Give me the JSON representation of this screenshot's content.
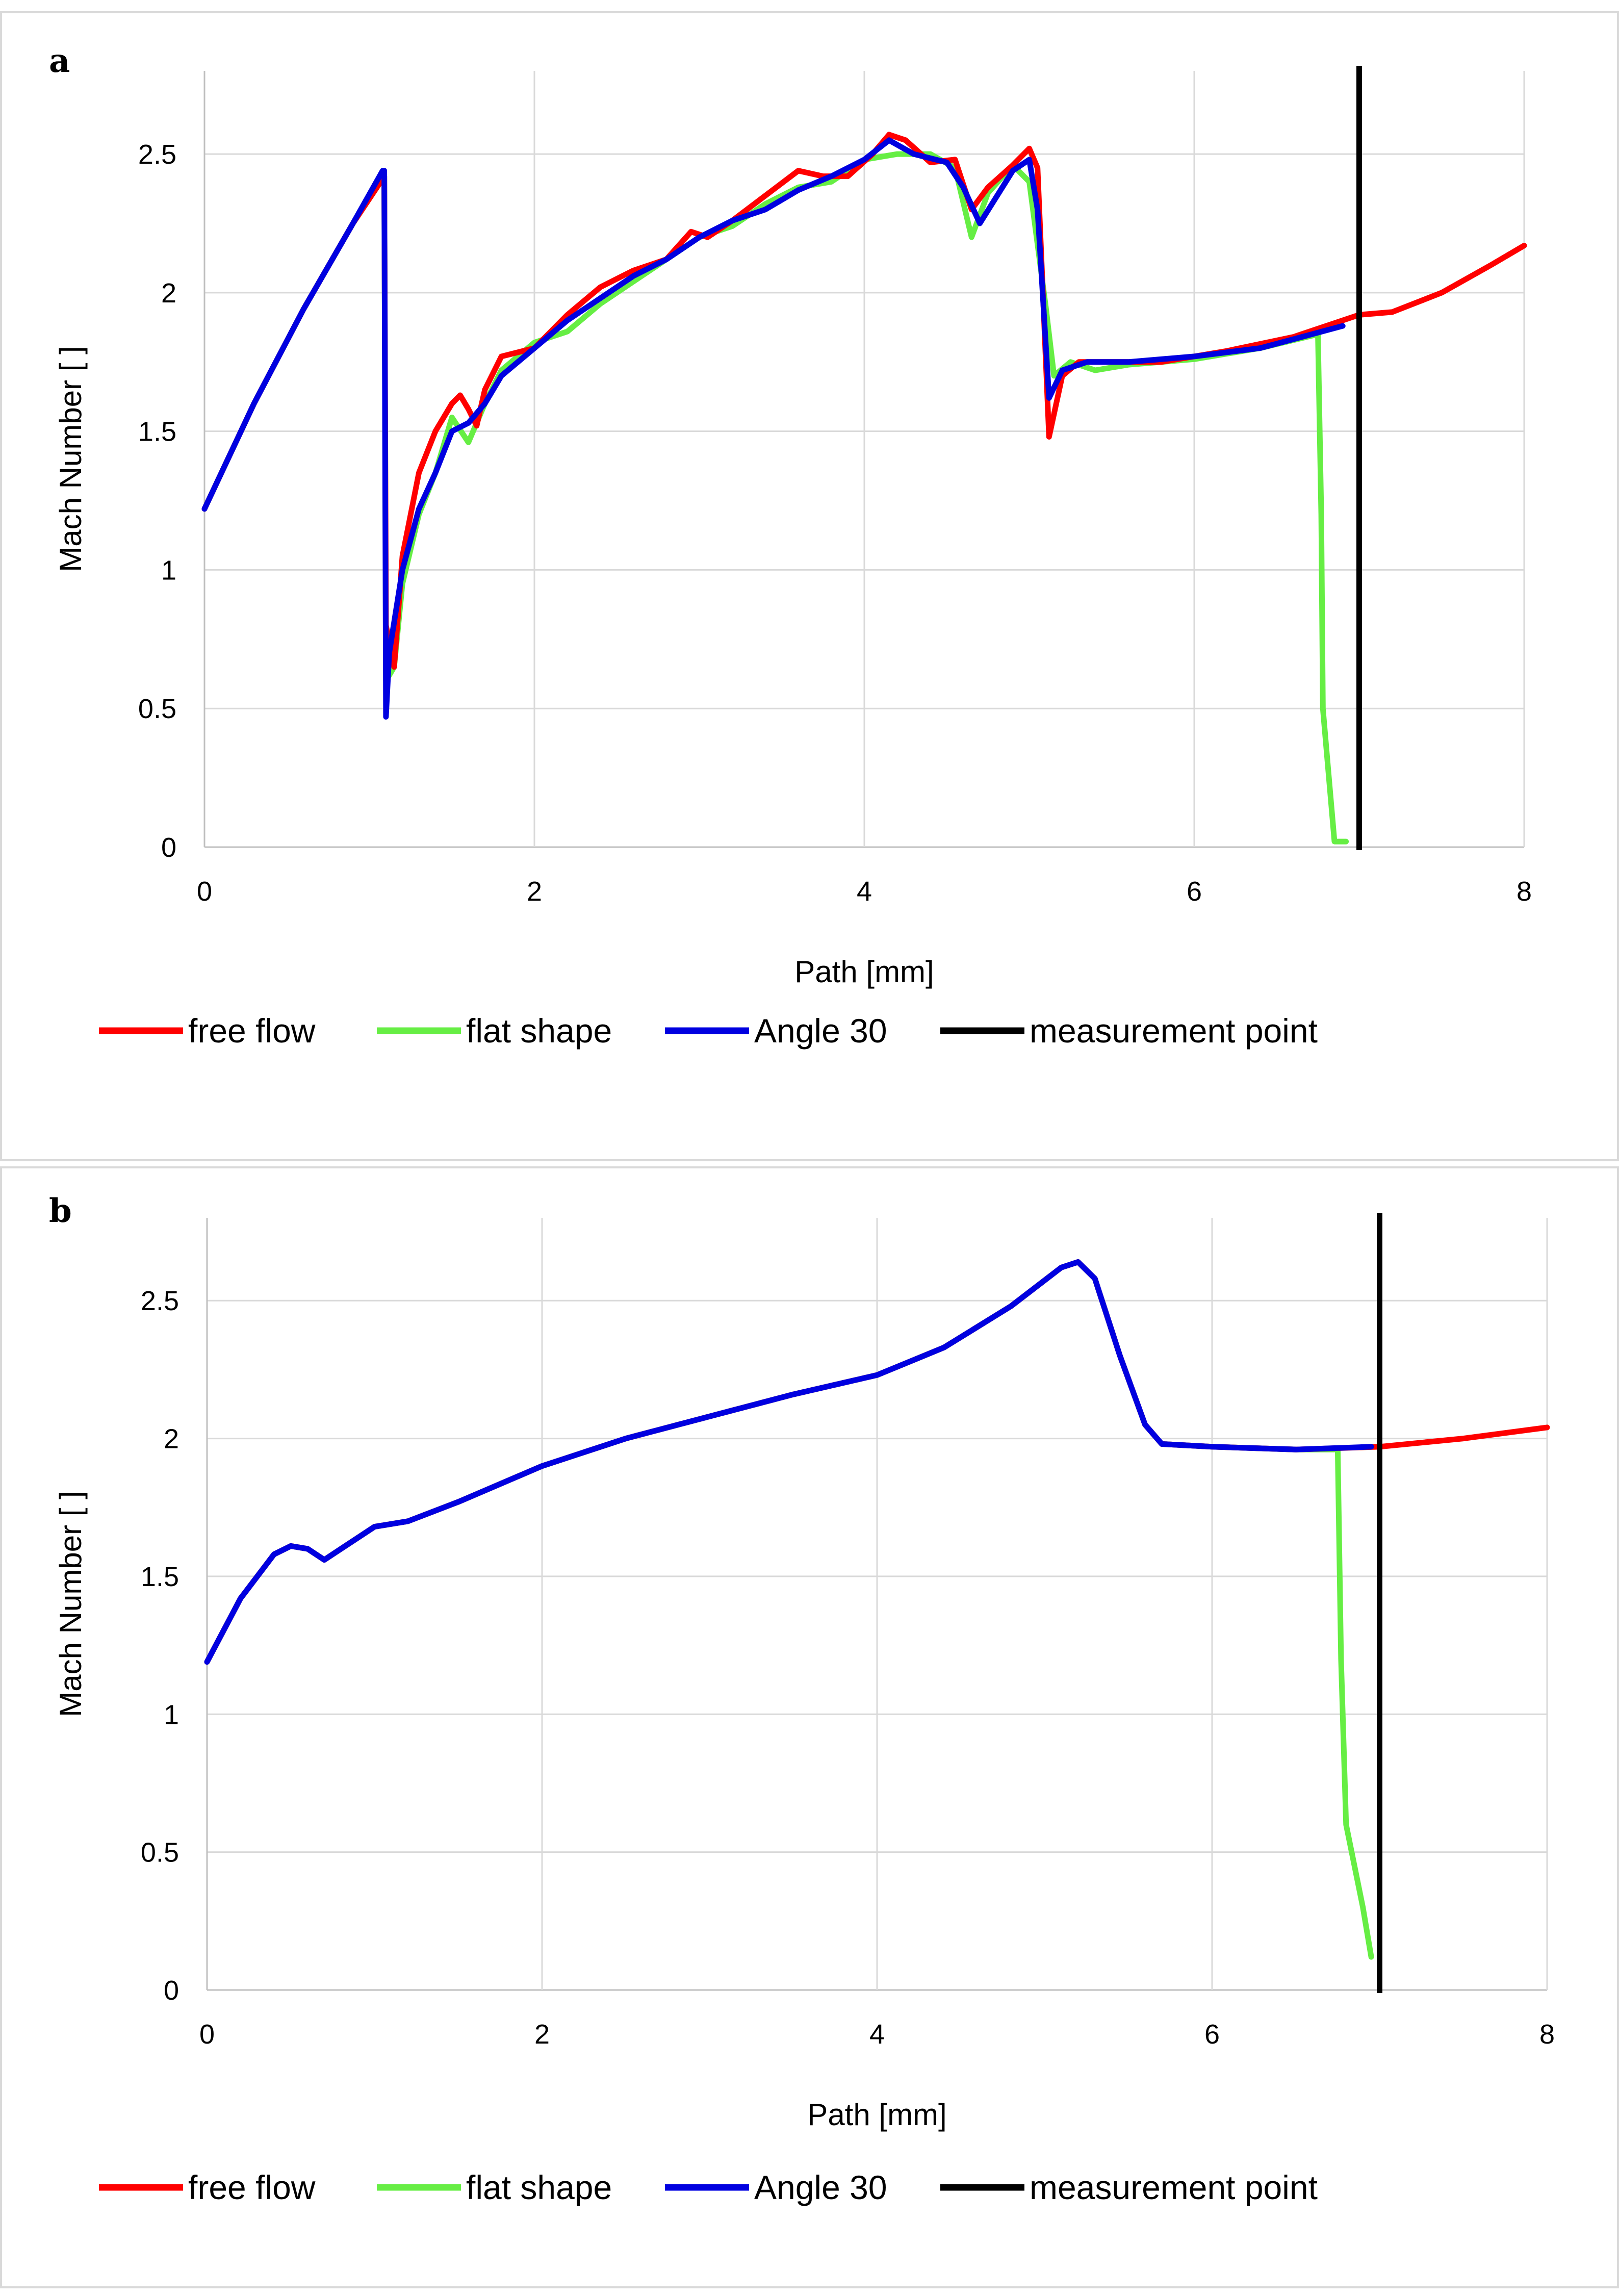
{
  "chart_data": [
    {
      "type": "line",
      "panel_label": "a",
      "xlabel": "Path [mm]",
      "ylabel": "Mach Number [ ]",
      "xlim": [
        0,
        8
      ],
      "ylim": [
        0,
        2.8
      ],
      "xticks": [
        "0",
        "2",
        "4",
        "6",
        "8"
      ],
      "yticks": [
        "0",
        "0.5",
        "1",
        "1.5",
        "2",
        "2.5"
      ],
      "grid": true,
      "legend_position": "bottom",
      "legend": [
        {
          "name": "free flow",
          "color": "#ff0000"
        },
        {
          "name": "flat shape",
          "color": "#66ee44"
        },
        {
          "name": "Angle 30",
          "color": "#0000e0"
        },
        {
          "name": "measurement point",
          "color": "#000000"
        }
      ],
      "measurement_x": 7.0,
      "series": [
        {
          "name": "free flow",
          "color": "#ff0000",
          "x": [
            0,
            0.3,
            0.6,
            0.9,
            1.09,
            1.1,
            1.15,
            1.2,
            1.3,
            1.4,
            1.5,
            1.55,
            1.6,
            1.65,
            1.7,
            1.8,
            2.0,
            2.2,
            2.4,
            2.6,
            2.8,
            2.95,
            3.05,
            3.2,
            3.4,
            3.6,
            3.75,
            3.9,
            4.05,
            4.15,
            4.25,
            4.4,
            4.55,
            4.65,
            4.75,
            4.9,
            5.0,
            5.05,
            5.12,
            5.2,
            5.3,
            5.5,
            5.8,
            6.2,
            6.6,
            7.0,
            7.2,
            7.5,
            7.8,
            8.0
          ],
          "y": [
            1.22,
            1.6,
            1.94,
            2.25,
            2.42,
            0.8,
            0.65,
            1.05,
            1.35,
            1.5,
            1.6,
            1.63,
            1.58,
            1.52,
            1.65,
            1.77,
            1.8,
            1.92,
            2.02,
            2.08,
            2.12,
            2.22,
            2.2,
            2.26,
            2.35,
            2.44,
            2.42,
            2.42,
            2.5,
            2.57,
            2.55,
            2.47,
            2.48,
            2.3,
            2.38,
            2.46,
            2.52,
            2.45,
            1.48,
            1.7,
            1.75,
            1.75,
            1.75,
            1.79,
            1.84,
            1.92,
            1.93,
            2.0,
            2.1,
            2.17
          ]
        },
        {
          "name": "flat shape",
          "color": "#66ee44",
          "x": [
            0,
            0.3,
            0.6,
            0.9,
            1.09,
            1.1,
            1.15,
            1.2,
            1.3,
            1.4,
            1.5,
            1.6,
            1.7,
            1.8,
            2.0,
            2.2,
            2.4,
            2.6,
            2.8,
            3.0,
            3.2,
            3.4,
            3.6,
            3.8,
            4.0,
            4.2,
            4.4,
            4.55,
            4.65,
            4.75,
            4.9,
            5.0,
            5.1,
            5.15,
            5.25,
            5.4,
            5.6,
            6.0,
            6.4,
            6.75,
            6.77,
            6.78,
            6.85,
            6.92
          ],
          "y": [
            1.22,
            1.6,
            1.94,
            2.25,
            2.42,
            0.6,
            0.65,
            0.95,
            1.2,
            1.35,
            1.55,
            1.46,
            1.6,
            1.72,
            1.82,
            1.86,
            1.96,
            2.04,
            2.12,
            2.2,
            2.24,
            2.32,
            2.38,
            2.4,
            2.48,
            2.5,
            2.5,
            2.45,
            2.2,
            2.36,
            2.46,
            2.4,
            1.95,
            1.7,
            1.75,
            1.72,
            1.74,
            1.76,
            1.8,
            1.85,
            1.2,
            0.5,
            0.02,
            0.02
          ]
        },
        {
          "name": "Angle 30",
          "color": "#0000e0",
          "x": [
            0,
            0.3,
            0.6,
            0.9,
            1.08,
            1.09,
            1.1,
            1.12,
            1.2,
            1.3,
            1.4,
            1.5,
            1.6,
            1.7,
            1.8,
            2.0,
            2.2,
            2.4,
            2.6,
            2.8,
            3.0,
            3.2,
            3.4,
            3.6,
            3.8,
            4.0,
            4.15,
            4.3,
            4.5,
            4.6,
            4.7,
            4.9,
            5.0,
            5.05,
            5.12,
            5.2,
            5.35,
            5.6,
            6.0,
            6.4,
            6.9
          ],
          "y": [
            1.22,
            1.6,
            1.94,
            2.25,
            2.44,
            2.44,
            0.47,
            0.7,
            1.0,
            1.22,
            1.35,
            1.5,
            1.53,
            1.6,
            1.7,
            1.8,
            1.9,
            1.98,
            2.06,
            2.12,
            2.2,
            2.26,
            2.3,
            2.37,
            2.42,
            2.48,
            2.55,
            2.5,
            2.47,
            2.38,
            2.25,
            2.44,
            2.48,
            2.3,
            1.62,
            1.72,
            1.75,
            1.75,
            1.77,
            1.8,
            1.88
          ]
        }
      ]
    },
    {
      "type": "line",
      "panel_label": "b",
      "xlabel": "Path [mm]",
      "ylabel": "Mach Number [ ]",
      "xlim": [
        0,
        8
      ],
      "ylim": [
        0,
        2.8
      ],
      "xticks": [
        "0",
        "2",
        "4",
        "6",
        "8"
      ],
      "yticks": [
        "0",
        "0.5",
        "1",
        "1.5",
        "2",
        "2.5"
      ],
      "grid": true,
      "legend_position": "bottom",
      "legend": [
        {
          "name": "free flow",
          "color": "#ff0000"
        },
        {
          "name": "flat shape",
          "color": "#66ee44"
        },
        {
          "name": "Angle 30",
          "color": "#0000e0"
        },
        {
          "name": "measurement point",
          "color": "#000000"
        }
      ],
      "measurement_x": 7.0,
      "series": [
        {
          "name": "free flow",
          "color": "#ff0000",
          "x": [
            0,
            0.2,
            0.4,
            0.5,
            0.6,
            0.7,
            0.8,
            1.0,
            1.2,
            1.5,
            2.0,
            2.5,
            3.0,
            3.5,
            4.0,
            4.4,
            4.8,
            5.1,
            5.2,
            5.3,
            5.45,
            5.6,
            5.7,
            6.0,
            6.5,
            7.0,
            7.5,
            8.0
          ],
          "y": [
            1.19,
            1.42,
            1.58,
            1.61,
            1.6,
            1.56,
            1.6,
            1.68,
            1.7,
            1.77,
            1.9,
            2.0,
            2.08,
            2.16,
            2.23,
            2.33,
            2.48,
            2.62,
            2.64,
            2.58,
            2.3,
            2.05,
            1.98,
            1.97,
            1.96,
            1.97,
            2.0,
            2.04
          ]
        },
        {
          "name": "flat shape",
          "color": "#66ee44",
          "x": [
            0,
            0.2,
            0.4,
            0.5,
            0.6,
            0.7,
            0.8,
            1.0,
            1.2,
            1.5,
            2.0,
            2.5,
            3.0,
            3.5,
            4.0,
            4.4,
            4.8,
            5.1,
            5.2,
            5.3,
            5.45,
            5.6,
            5.7,
            6.0,
            6.5,
            6.75,
            6.77,
            6.8,
            6.9,
            6.95
          ],
          "y": [
            1.19,
            1.42,
            1.58,
            1.61,
            1.6,
            1.56,
            1.6,
            1.68,
            1.7,
            1.77,
            1.9,
            2.0,
            2.08,
            2.16,
            2.23,
            2.33,
            2.48,
            2.62,
            2.64,
            2.58,
            2.3,
            2.05,
            1.98,
            1.97,
            1.96,
            1.96,
            1.2,
            0.6,
            0.3,
            0.12
          ]
        },
        {
          "name": "Angle 30",
          "color": "#0000e0",
          "x": [
            0,
            0.2,
            0.4,
            0.5,
            0.6,
            0.7,
            0.8,
            1.0,
            1.2,
            1.5,
            2.0,
            2.5,
            3.0,
            3.5,
            4.0,
            4.4,
            4.8,
            5.1,
            5.2,
            5.3,
            5.45,
            5.6,
            5.7,
            6.0,
            6.5,
            6.95
          ],
          "y": [
            1.19,
            1.42,
            1.58,
            1.61,
            1.6,
            1.56,
            1.6,
            1.68,
            1.7,
            1.77,
            1.9,
            2.0,
            2.08,
            2.16,
            2.23,
            2.33,
            2.48,
            2.62,
            2.64,
            2.58,
            2.3,
            2.05,
            1.98,
            1.97,
            1.96,
            1.97
          ]
        }
      ]
    }
  ]
}
